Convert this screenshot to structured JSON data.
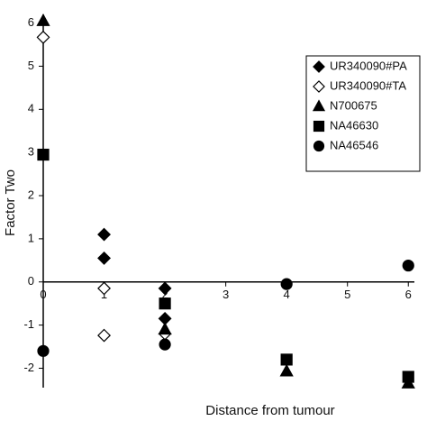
{
  "chart_data": {
    "type": "scatter",
    "x_label": "Distance from tumour",
    "y_label": "Factor Two",
    "xlim": [
      0,
      6.1
    ],
    "ylim": [
      -2.45,
      6.2
    ],
    "xticks": [
      0,
      1,
      2,
      3,
      4,
      5,
      6
    ],
    "yticks": [
      -2,
      -1,
      0,
      1,
      2,
      3,
      4,
      5,
      6
    ],
    "legend": "upper right",
    "series": [
      {
        "name": "UR340090#PA",
        "color": "#000000",
        "marker": "diamond",
        "filled": true,
        "x": [
          1,
          1,
          2,
          2
        ],
        "values": [
          1.1,
          0.55,
          -0.15,
          -0.85
        ]
      },
      {
        "name": "UR340090#TA",
        "color": "#000000",
        "marker": "diamond",
        "filled": false,
        "x": [
          0,
          1,
          1,
          2
        ],
        "values": [
          5.67,
          -0.15,
          -1.24,
          -1.2
        ]
      },
      {
        "name": "N700675",
        "color": "#000000",
        "marker": "triangle",
        "filled": true,
        "x": [
          0,
          2,
          4,
          6
        ],
        "values": [
          6.05,
          -1.1,
          -2.07,
          -2.35
        ]
      },
      {
        "name": "NA46630",
        "color": "#000000",
        "marker": "square",
        "filled": true,
        "x": [
          0,
          2,
          4,
          6
        ],
        "values": [
          2.95,
          -0.5,
          -1.8,
          -2.2
        ]
      },
      {
        "name": "NA46546",
        "color": "#000000",
        "marker": "circle",
        "filled": true,
        "x": [
          0,
          2,
          4,
          6
        ],
        "values": [
          -1.6,
          -1.45,
          -0.05,
          0.38
        ]
      }
    ]
  }
}
